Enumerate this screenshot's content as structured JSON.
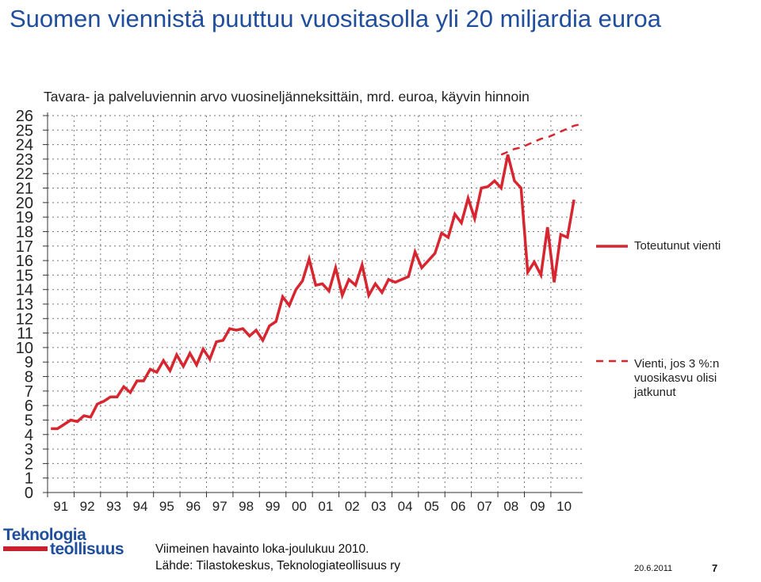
{
  "title": "Suomen viennistä puuttuu vuositasolla yli 20 miljardia euroa",
  "subtitle": "Tavara- ja palveluviennin arvo vuosineljänneksittäin, mrd. euroa, käyvin hinnoin",
  "legend": {
    "actual": "Toteutunut vienti",
    "trend": "Vienti, jos 3 %:n vuosikasvu olisi jatkunut"
  },
  "footnote": {
    "line1": "Viimeinen havainto loka-joulukuu 2010.",
    "line2": "Lähde: Tilastokeskus, Teknologiateollisuus ry"
  },
  "logo": {
    "line1": "Teknologia",
    "line2": "teollisuus"
  },
  "footer": {
    "date": "20.6.2011",
    "page": "7"
  },
  "colors": {
    "title": "#1f4e9c",
    "series": "#d7262f"
  },
  "chart_data": {
    "type": "line",
    "xlabel": "",
    "ylabel": "",
    "ylim": [
      0,
      26
    ],
    "x_tick_labels": [
      "91",
      "92",
      "93",
      "94",
      "95",
      "96",
      "97",
      "98",
      "99",
      "00",
      "01",
      "02",
      "03",
      "04",
      "05",
      "06",
      "07",
      "08",
      "09",
      "10"
    ],
    "y_tick_labels": [
      "0",
      "1",
      "2",
      "3",
      "4",
      "5",
      "6",
      "7",
      "8",
      "9",
      "10",
      "11",
      "12",
      "13",
      "14",
      "15",
      "16",
      "17",
      "18",
      "19",
      "20",
      "21",
      "22",
      "23",
      "24",
      "25",
      "26"
    ],
    "grid": true,
    "legend_position": "right",
    "series": [
      {
        "name": "Toteutunut vienti",
        "style": "solid",
        "x": [
          "1991Q1",
          "1991Q2",
          "1991Q3",
          "1991Q4",
          "1992Q1",
          "1992Q2",
          "1992Q3",
          "1992Q4",
          "1993Q1",
          "1993Q2",
          "1993Q3",
          "1993Q4",
          "1994Q1",
          "1994Q2",
          "1994Q3",
          "1994Q4",
          "1995Q1",
          "1995Q2",
          "1995Q3",
          "1995Q4",
          "1996Q1",
          "1996Q2",
          "1996Q3",
          "1996Q4",
          "1997Q1",
          "1997Q2",
          "1997Q3",
          "1997Q4",
          "1998Q1",
          "1998Q2",
          "1998Q3",
          "1998Q4",
          "1999Q1",
          "1999Q2",
          "1999Q3",
          "1999Q4",
          "2000Q1",
          "2000Q2",
          "2000Q3",
          "2000Q4",
          "2001Q1",
          "2001Q2",
          "2001Q3",
          "2001Q4",
          "2002Q1",
          "2002Q2",
          "2002Q3",
          "2002Q4",
          "2003Q1",
          "2003Q2",
          "2003Q3",
          "2003Q4",
          "2004Q1",
          "2004Q2",
          "2004Q3",
          "2004Q4",
          "2005Q1",
          "2005Q2",
          "2005Q3",
          "2005Q4",
          "2006Q1",
          "2006Q2",
          "2006Q3",
          "2006Q4",
          "2007Q1",
          "2007Q2",
          "2007Q3",
          "2007Q4",
          "2008Q1",
          "2008Q2",
          "2008Q3",
          "2008Q4",
          "2009Q1",
          "2009Q2",
          "2009Q3",
          "2009Q4",
          "2010Q1",
          "2010Q2",
          "2010Q3",
          "2010Q4"
        ],
        "values": [
          4.4,
          4.4,
          4.7,
          5.0,
          4.9,
          5.3,
          5.2,
          6.1,
          6.3,
          6.6,
          6.6,
          7.3,
          6.9,
          7.7,
          7.7,
          8.5,
          8.3,
          9.1,
          8.4,
          9.5,
          8.7,
          9.6,
          8.8,
          9.9,
          9.2,
          10.4,
          10.5,
          11.3,
          11.2,
          11.3,
          10.8,
          11.2,
          10.5,
          11.5,
          11.8,
          13.5,
          12.9,
          14.0,
          14.6,
          16.1,
          14.3,
          14.4,
          13.9,
          15.5,
          13.6,
          14.7,
          14.3,
          15.7,
          13.6,
          14.4,
          13.8,
          14.7,
          14.5,
          14.7,
          14.9,
          16.6,
          15.5,
          16.0,
          16.5,
          17.9,
          17.6,
          19.2,
          18.6,
          20.3,
          18.9,
          21.0,
          21.1,
          21.5,
          21.0,
          23.3,
          21.5,
          21.0,
          15.2,
          15.9,
          15.0,
          18.3,
          14.5,
          17.8,
          17.6,
          20.2
        ]
      },
      {
        "name": "Vienti, jos 3 %:n vuosikasvu olisi jatkunut",
        "style": "dashed",
        "x": [
          "2008Q1",
          "2008Q2",
          "2008Q3",
          "2008Q4",
          "2009Q1",
          "2009Q2",
          "2009Q3",
          "2009Q4",
          "2010Q1",
          "2010Q2",
          "2010Q3",
          "2010Q4",
          "2011Q1"
        ],
        "values": [
          23.3,
          23.5,
          23.7,
          23.8,
          24.0,
          24.2,
          24.4,
          24.5,
          24.7,
          24.9,
          25.1,
          25.3,
          25.4
        ]
      }
    ]
  }
}
